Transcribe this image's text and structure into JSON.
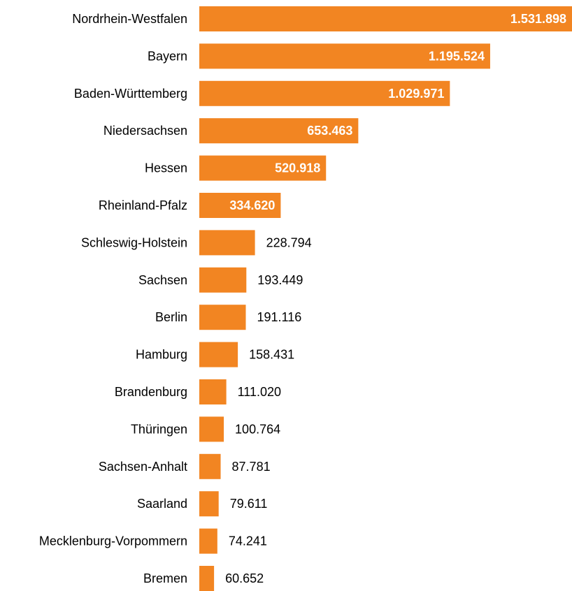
{
  "chart_data": {
    "type": "bar",
    "orientation": "horizontal",
    "title": "",
    "xlabel": "",
    "ylabel": "",
    "grid": false,
    "legend": "none",
    "bar_color": "#F28522",
    "inside_label_color": "#FFFFFF",
    "outside_label_color": "#000000",
    "xlim": [
      0,
      1531898
    ],
    "categories": [
      "Nordrhein-Westfalen",
      "Bayern",
      "Baden-Württemberg",
      "Niedersachsen",
      "Hessen",
      "Rheinland-Pfalz",
      "Schleswig-Holstein",
      "Sachsen",
      "Berlin",
      "Hamburg",
      "Brandenburg",
      "Thüringen",
      "Sachsen-Anhalt",
      "Saarland",
      "Mecklenburg-Vorpommern",
      "Bremen"
    ],
    "values": [
      1531898,
      1195524,
      1029971,
      653463,
      520918,
      334620,
      228794,
      193449,
      191116,
      158431,
      111020,
      100764,
      87781,
      79611,
      74241,
      60652
    ],
    "value_labels": [
      "1.531.898",
      "1.195.524",
      "1.029.971",
      "653.463",
      "520.918",
      "334.620",
      "228.794",
      "193.449",
      "191.116",
      "158.431",
      "111.020",
      "100.764",
      "87.781",
      "79.611",
      "74.241",
      "60.652"
    ],
    "label_inside_bar": [
      true,
      true,
      true,
      true,
      true,
      true,
      false,
      false,
      false,
      false,
      false,
      false,
      false,
      false,
      false,
      false
    ]
  }
}
